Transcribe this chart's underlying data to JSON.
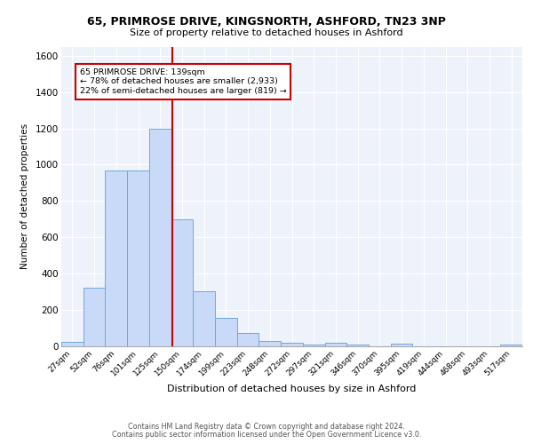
{
  "title_line1": "65, PRIMROSE DRIVE, KINGSNORTH, ASHFORD, TN23 3NP",
  "title_line2": "Size of property relative to detached houses in Ashford",
  "xlabel": "Distribution of detached houses by size in Ashford",
  "ylabel": "Number of detached properties",
  "categories": [
    "27sqm",
    "52sqm",
    "76sqm",
    "101sqm",
    "125sqm",
    "150sqm",
    "174sqm",
    "199sqm",
    "223sqm",
    "248sqm",
    "272sqm",
    "297sqm",
    "321sqm",
    "346sqm",
    "370sqm",
    "395sqm",
    "419sqm",
    "444sqm",
    "468sqm",
    "493sqm",
    "517sqm"
  ],
  "values": [
    25,
    325,
    970,
    970,
    1200,
    700,
    305,
    155,
    75,
    30,
    20,
    10,
    20,
    10,
    0,
    15,
    0,
    0,
    0,
    0,
    10
  ],
  "bar_color": "#c9daf8",
  "bar_edge_color": "#6fa8dc",
  "vline_color": "#cc0000",
  "annotation_text": "65 PRIMROSE DRIVE: 139sqm\n← 78% of detached houses are smaller (2,933)\n22% of semi-detached houses are larger (819) →",
  "annotation_box_color": "white",
  "annotation_box_edge": "#cc0000",
  "footer_line1": "Contains HM Land Registry data © Crown copyright and database right 2024.",
  "footer_line2": "Contains public sector information licensed under the Open Government Licence v3.0.",
  "background_color": "#eef2fb",
  "grid_color": "white",
  "ylim": [
    0,
    1650
  ],
  "yticks": [
    0,
    200,
    400,
    600,
    800,
    1000,
    1200,
    1400,
    1600
  ]
}
